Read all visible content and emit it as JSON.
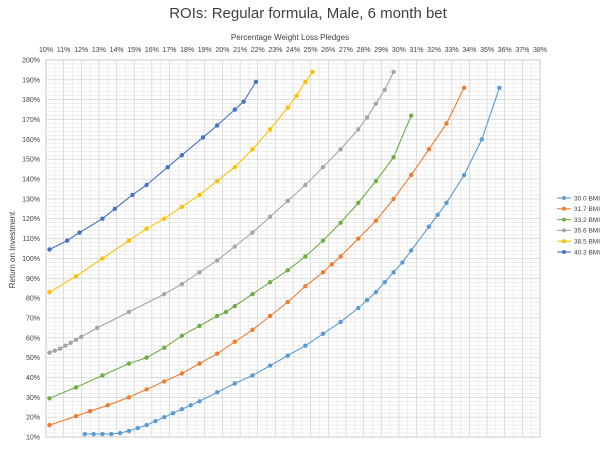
{
  "chart_data": {
    "type": "line",
    "title": "ROIs: Regular formula, Male, 6 month bet",
    "xlabel": "Percentage Weight Loss Pledges",
    "ylabel": "Return on Investment",
    "xlim": [
      10,
      38
    ],
    "ylim": [
      10,
      200
    ],
    "x_ticks": [
      "10%",
      "11%",
      "12%",
      "13%",
      "14%",
      "15%",
      "16%",
      "17%",
      "18%",
      "19%",
      "20%",
      "21%",
      "22%",
      "23%",
      "24%",
      "25%",
      "26%",
      "27%",
      "28%",
      "29%",
      "30%",
      "31%",
      "32%",
      "33%",
      "34%",
      "35%",
      "36%",
      "37%",
      "38%"
    ],
    "y_ticks": [
      "10%",
      "20%",
      "30%",
      "40%",
      "50%",
      "60%",
      "70%",
      "80%",
      "90%",
      "100%",
      "110%",
      "120%",
      "130%",
      "140%",
      "150%",
      "160%",
      "170%",
      "180%",
      "190%",
      "200%"
    ],
    "x_axis_position": "top",
    "grid": true,
    "legend_position": "right",
    "series": [
      {
        "name": "30.0 BMI",
        "color": "#5b9bd5",
        "points": [
          [
            12.2,
            11.5
          ],
          [
            12.7,
            11.5
          ],
          [
            13.2,
            11.5
          ],
          [
            13.7,
            11.5
          ],
          [
            14.2,
            12
          ],
          [
            14.7,
            13
          ],
          [
            15.2,
            14.5
          ],
          [
            15.7,
            16
          ],
          [
            16.2,
            18
          ],
          [
            16.7,
            20
          ],
          [
            17.2,
            22
          ],
          [
            17.7,
            24
          ],
          [
            18.2,
            26
          ],
          [
            18.7,
            28
          ],
          [
            19.7,
            32.5
          ],
          [
            20.7,
            37
          ],
          [
            21.7,
            41
          ],
          [
            22.7,
            46
          ],
          [
            23.7,
            51
          ],
          [
            24.7,
            56
          ],
          [
            25.7,
            62
          ],
          [
            26.7,
            68
          ],
          [
            27.7,
            75
          ],
          [
            28.2,
            79
          ],
          [
            28.7,
            83
          ],
          [
            29.2,
            88
          ],
          [
            29.7,
            93
          ],
          [
            30.2,
            98
          ],
          [
            30.7,
            104
          ],
          [
            31.7,
            116
          ],
          [
            32.2,
            122
          ],
          [
            32.7,
            128
          ],
          [
            33.7,
            142
          ],
          [
            34.7,
            160
          ],
          [
            35.7,
            186
          ]
        ]
      },
      {
        "name": "31.7 BMI",
        "color": "#ed7d31",
        "points": [
          [
            10.2,
            16
          ],
          [
            11.7,
            20.5
          ],
          [
            12.5,
            23
          ],
          [
            13.5,
            26
          ],
          [
            14.7,
            30
          ],
          [
            15.7,
            34
          ],
          [
            16.7,
            38
          ],
          [
            17.7,
            42
          ],
          [
            18.7,
            47
          ],
          [
            19.7,
            52
          ],
          [
            20.7,
            58
          ],
          [
            21.7,
            64
          ],
          [
            22.7,
            71
          ],
          [
            23.7,
            78
          ],
          [
            24.7,
            86
          ],
          [
            25.7,
            93
          ],
          [
            26.2,
            97
          ],
          [
            26.7,
            101
          ],
          [
            27.7,
            110
          ],
          [
            28.7,
            119
          ],
          [
            29.7,
            130
          ],
          [
            30.7,
            142
          ],
          [
            31.7,
            155
          ],
          [
            32.7,
            168
          ],
          [
            33.7,
            186
          ]
        ]
      },
      {
        "name": "33.2 BMI",
        "color": "#70ad47",
        "points": [
          [
            10.2,
            29.5
          ],
          [
            11.7,
            35
          ],
          [
            13.2,
            41
          ],
          [
            14.7,
            47
          ],
          [
            15.7,
            50
          ],
          [
            16.7,
            55
          ],
          [
            17.7,
            61
          ],
          [
            18.7,
            66
          ],
          [
            19.7,
            71
          ],
          [
            20.2,
            73
          ],
          [
            20.7,
            76
          ],
          [
            21.7,
            82
          ],
          [
            22.7,
            88
          ],
          [
            23.7,
            94
          ],
          [
            24.7,
            101
          ],
          [
            25.7,
            109
          ],
          [
            26.7,
            118
          ],
          [
            27.7,
            128
          ],
          [
            28.7,
            139
          ],
          [
            29.7,
            151
          ],
          [
            30.7,
            172
          ]
        ]
      },
      {
        "name": "35.6 BMI",
        "color": "#a5a5a5",
        "points": [
          [
            10.2,
            52.5
          ],
          [
            10.5,
            53.5
          ],
          [
            10.8,
            54.5
          ],
          [
            11.1,
            56
          ],
          [
            11.4,
            57.5
          ],
          [
            11.7,
            59
          ],
          [
            12.0,
            60.5
          ],
          [
            12.9,
            65
          ],
          [
            14.7,
            73
          ],
          [
            16.7,
            82
          ],
          [
            17.7,
            87
          ],
          [
            18.7,
            93
          ],
          [
            19.7,
            99
          ],
          [
            20.7,
            106
          ],
          [
            21.7,
            113
          ],
          [
            22.7,
            121
          ],
          [
            23.7,
            129
          ],
          [
            24.7,
            137
          ],
          [
            25.7,
            146
          ],
          [
            26.7,
            155
          ],
          [
            27.7,
            165
          ],
          [
            28.2,
            171
          ],
          [
            28.7,
            178
          ],
          [
            29.2,
            185
          ],
          [
            29.7,
            194
          ]
        ]
      },
      {
        "name": "38.5 BMI",
        "color": "#ffc000",
        "points": [
          [
            10.2,
            83
          ],
          [
            11.7,
            91
          ],
          [
            13.2,
            100
          ],
          [
            14.7,
            109
          ],
          [
            15.7,
            115
          ],
          [
            16.7,
            120
          ],
          [
            17.7,
            126
          ],
          [
            18.7,
            132
          ],
          [
            19.7,
            139
          ],
          [
            20.7,
            146
          ],
          [
            21.7,
            155
          ],
          [
            22.7,
            165
          ],
          [
            23.7,
            176
          ],
          [
            24.2,
            182
          ],
          [
            24.7,
            189
          ],
          [
            25.1,
            194
          ]
        ]
      },
      {
        "name": "40.3 BMI",
        "color": "#4472c4",
        "points": [
          [
            10.2,
            104.5
          ],
          [
            11.2,
            109
          ],
          [
            11.9,
            113
          ],
          [
            13.2,
            120
          ],
          [
            13.9,
            125
          ],
          [
            14.9,
            132
          ],
          [
            15.7,
            137
          ],
          [
            16.9,
            146
          ],
          [
            17.7,
            152
          ],
          [
            18.9,
            161
          ],
          [
            19.7,
            167
          ],
          [
            20.7,
            175
          ],
          [
            21.2,
            179
          ],
          [
            21.9,
            189
          ]
        ]
      }
    ]
  }
}
